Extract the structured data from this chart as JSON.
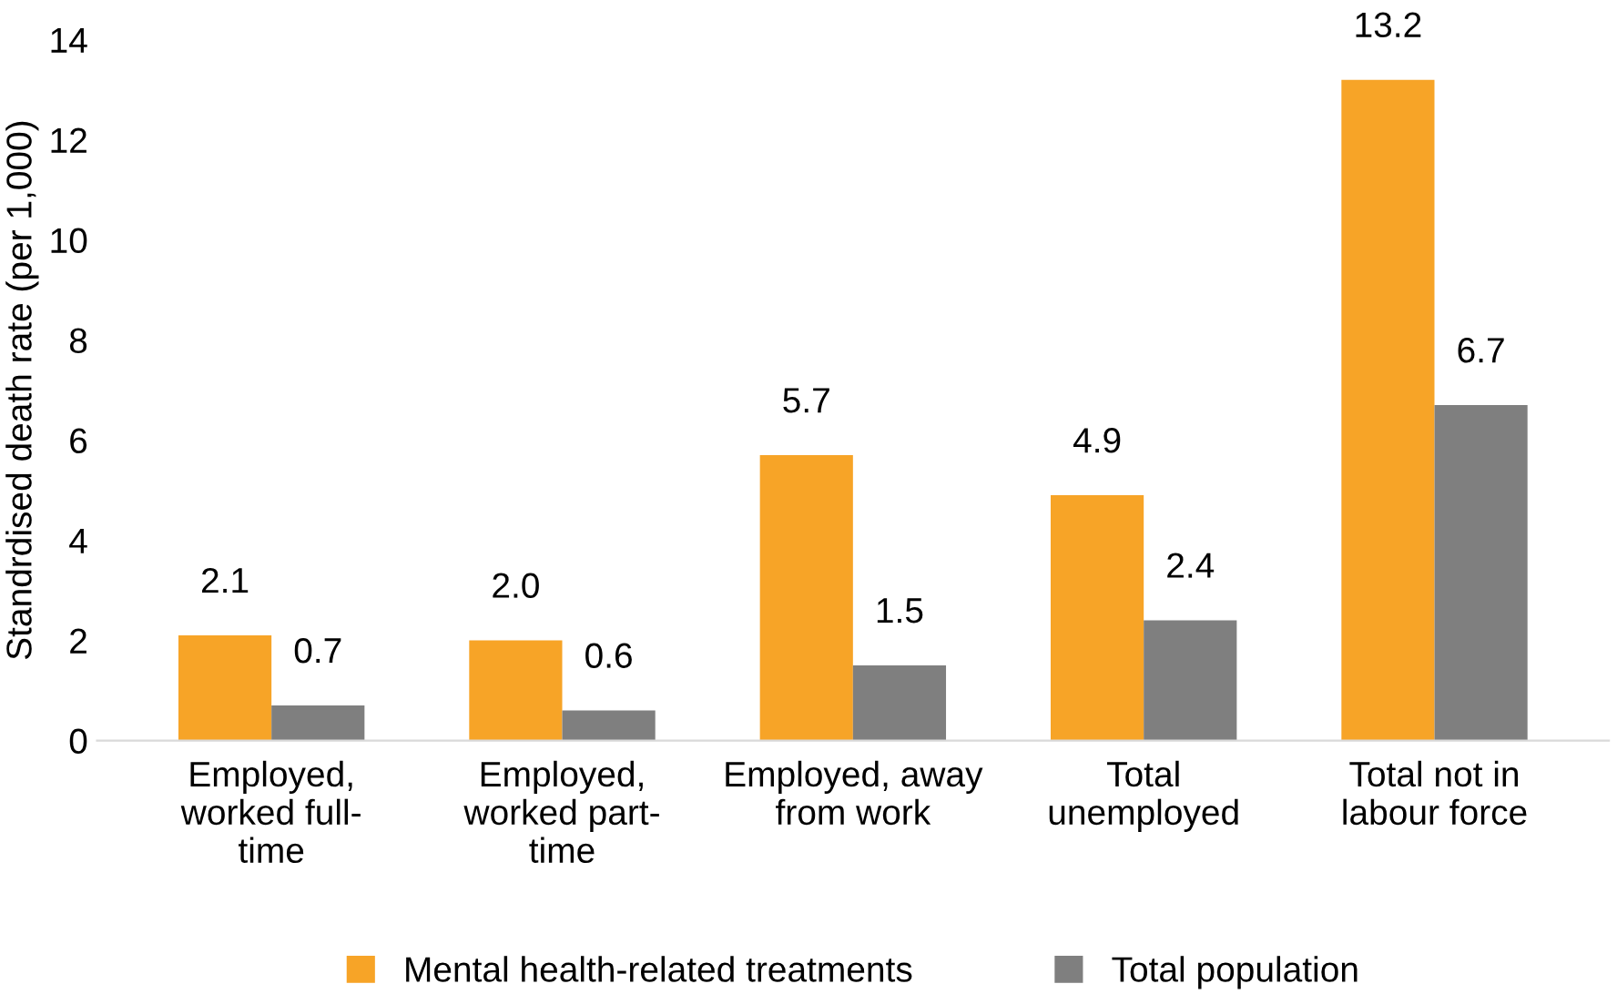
{
  "chart_data": {
    "type": "bar",
    "ylabel": "Standrdised death rate (per 1,000)",
    "categories": [
      "Employed,\nworked full-\ntime",
      "Employed,\nworked part-\ntime",
      "Employed, away\nfrom work",
      "Total\nunemployed",
      "Total not in\nlabour force"
    ],
    "series": [
      {
        "name": "Mental health-related treatments",
        "color": "#f7a427",
        "values": [
          2.1,
          2.0,
          5.7,
          4.9,
          13.2
        ],
        "value_labels": [
          "2.1",
          "2.0",
          "5.7",
          "4.9",
          "13.2"
        ]
      },
      {
        "name": "Total population",
        "color": "#7f7f7f",
        "values": [
          0.7,
          0.6,
          1.5,
          2.4,
          6.7
        ],
        "value_labels": [
          "0.7",
          "0.6",
          "1.5",
          "2.4",
          "6.7"
        ]
      }
    ],
    "ylim": [
      0,
      14
    ],
    "yticks": [
      0,
      2,
      4,
      6,
      8,
      10,
      12,
      14
    ],
    "grid": false,
    "legend": "bottom"
  }
}
